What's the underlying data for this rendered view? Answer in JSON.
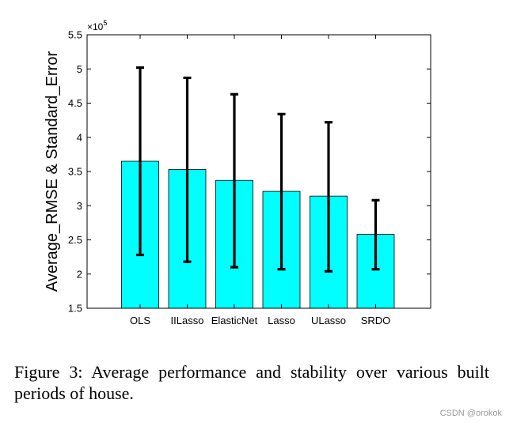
{
  "chart_data": {
    "type": "bar",
    "categories": [
      "OLS",
      "IILasso",
      "ElasticNet",
      "Lasso",
      "ULasso",
      "SRDO"
    ],
    "values": [
      3.65,
      3.53,
      3.37,
      3.21,
      3.14,
      2.58
    ],
    "error_low": [
      2.28,
      2.18,
      2.1,
      2.07,
      2.04,
      2.07
    ],
    "error_high": [
      5.02,
      4.87,
      4.63,
      4.34,
      4.22,
      3.08
    ],
    "ylim": [
      1.5,
      5.5
    ],
    "yticks": [
      "1.5",
      "2",
      "2.5",
      "3",
      "3.5",
      "4",
      "4.5",
      "5",
      "5.5"
    ],
    "exponent_label": "×10",
    "exponent_power": "5",
    "ylabel": "Average_RMSE & Standard_Error",
    "xlabel": "",
    "bar_color": "#00ffff",
    "errorbar_color": "#000000"
  },
  "caption": "Figure 3: Average performance and stability over various built periods of house.",
  "watermark": "CSDN @orokok"
}
